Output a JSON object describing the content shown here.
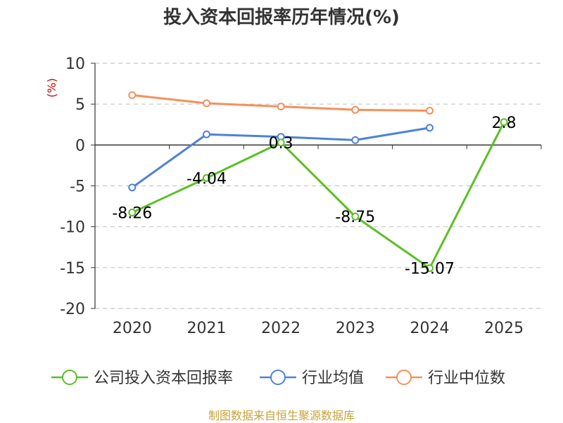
{
  "chart_data": {
    "type": "line",
    "title": "投入资本回报率历年情况(%)",
    "ylabel": "(%)",
    "categories": [
      "2020",
      "2021",
      "2022",
      "2023",
      "2024",
      "2025"
    ],
    "ylim": [
      -20,
      10
    ],
    "yticks": [
      10,
      5,
      0,
      -5,
      -10,
      -15,
      -20
    ],
    "grid": true,
    "legend_position": "bottom",
    "series": [
      {
        "name": "公司投入资本回报率",
        "color": "#5cbf26",
        "values": [
          -8.26,
          -4.04,
          0.3,
          -8.75,
          -15.07,
          2.8
        ],
        "labels": [
          "-8.26",
          "-4.04",
          "0.3",
          "-8.75",
          "-15.07",
          "2.8"
        ]
      },
      {
        "name": "行业均值",
        "color": "#4f81d9",
        "values": [
          -5.2,
          1.3,
          1.0,
          0.6,
          2.1,
          null
        ]
      },
      {
        "name": "行业中位数",
        "color": "#f5905a",
        "values": [
          6.1,
          5.1,
          4.7,
          4.3,
          4.2,
          null
        ]
      }
    ]
  },
  "source": "制图数据来自恒生聚源数据库"
}
